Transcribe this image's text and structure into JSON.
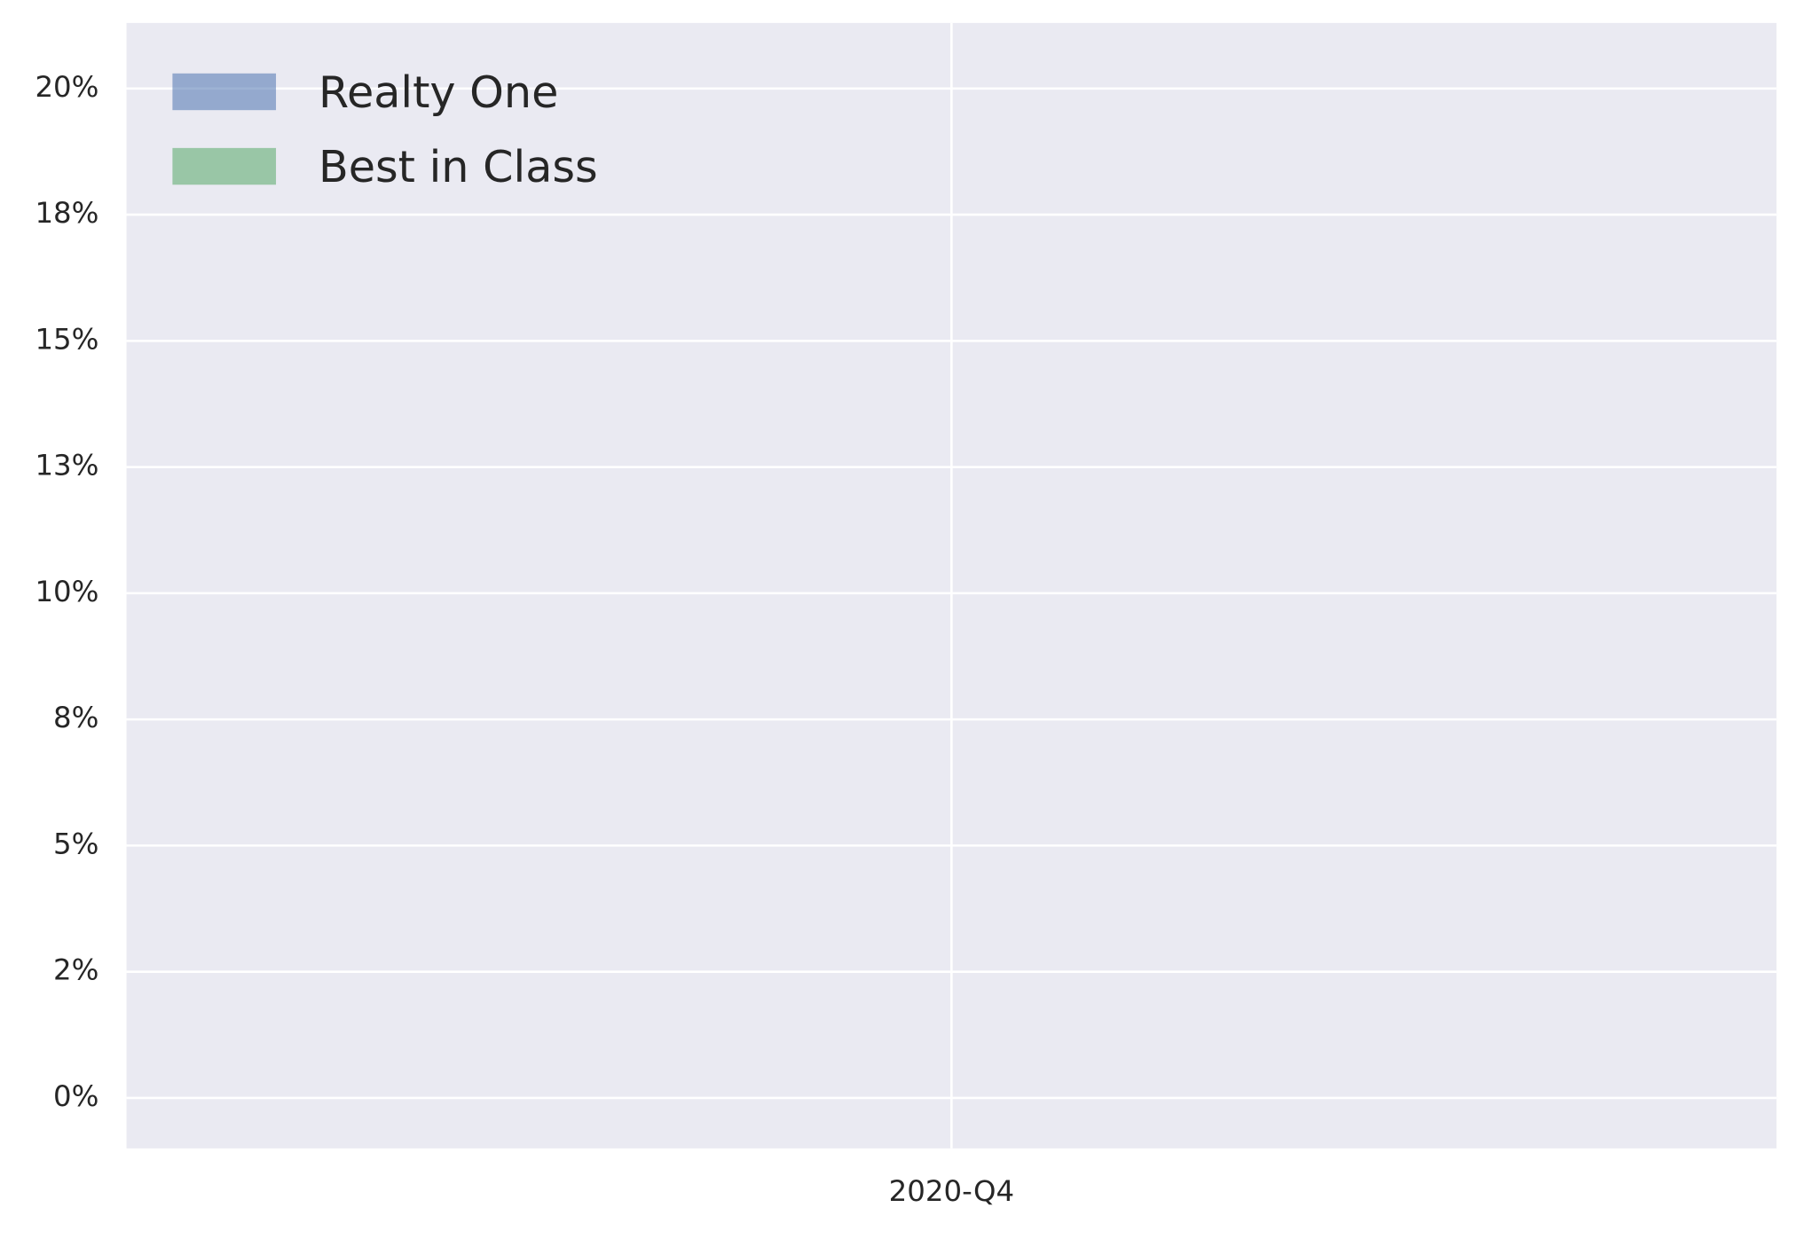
{
  "chart_data": {
    "type": "area",
    "categories": [
      "2020-Q4"
    ],
    "series": [
      {
        "name": "Realty One",
        "color": "#4c72b0",
        "values": [
          null
        ]
      },
      {
        "name": "Best in Class",
        "color": "#55a868",
        "values": [
          null
        ]
      }
    ],
    "ylim": [
      -1.0,
      21.3
    ],
    "yticks": [
      {
        "value": 0,
        "label": "0%"
      },
      {
        "value": 2.5,
        "label": "2%"
      },
      {
        "value": 5,
        "label": "5%"
      },
      {
        "value": 7.5,
        "label": "8%"
      },
      {
        "value": 10,
        "label": "10%"
      },
      {
        "value": 12.5,
        "label": "13%"
      },
      {
        "value": 15,
        "label": "15%"
      },
      {
        "value": 17.5,
        "label": "18%"
      },
      {
        "value": 20,
        "label": "20%"
      }
    ],
    "grid": true,
    "legend": "upper left"
  }
}
